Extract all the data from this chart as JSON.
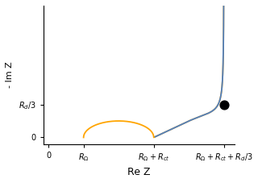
{
  "R_omega": 1.0,
  "R_ct": 2.0,
  "R_d": 6.0,
  "xlabel": "Re Z",
  "ylabel": "- Im Z",
  "orange_color": "#FFA500",
  "blue_color": "#5080C0",
  "dot_color": "black",
  "dot_size": 60,
  "xtick_labels": [
    "0",
    "$R_{\\Omega}$",
    "$R_{\\Omega}+R_{ct}$",
    "$R_{\\Omega}+R_{ct}+R_d/3$"
  ],
  "ytick_labels": [
    "0",
    "$R_d/3$"
  ],
  "figsize": [
    3.2,
    2.27
  ],
  "dpi": 100
}
